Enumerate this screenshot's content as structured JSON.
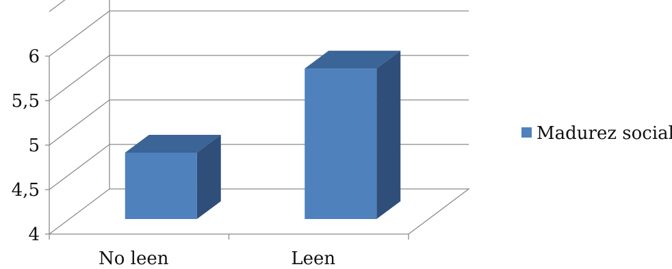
{
  "chart_data": {
    "type": "bar",
    "categories": [
      "No leen",
      "Leen"
    ],
    "series": [
      {
        "name": "Madurez social",
        "values": [
          4.75,
          5.7
        ],
        "color": "#4F81BD"
      }
    ],
    "ylim": [
      4,
      6.5
    ],
    "y_ticks": [
      "4",
      "4,5",
      "5",
      "5,5",
      "6"
    ],
    "grid": true,
    "legend_position": "right",
    "style": "3d-column"
  }
}
